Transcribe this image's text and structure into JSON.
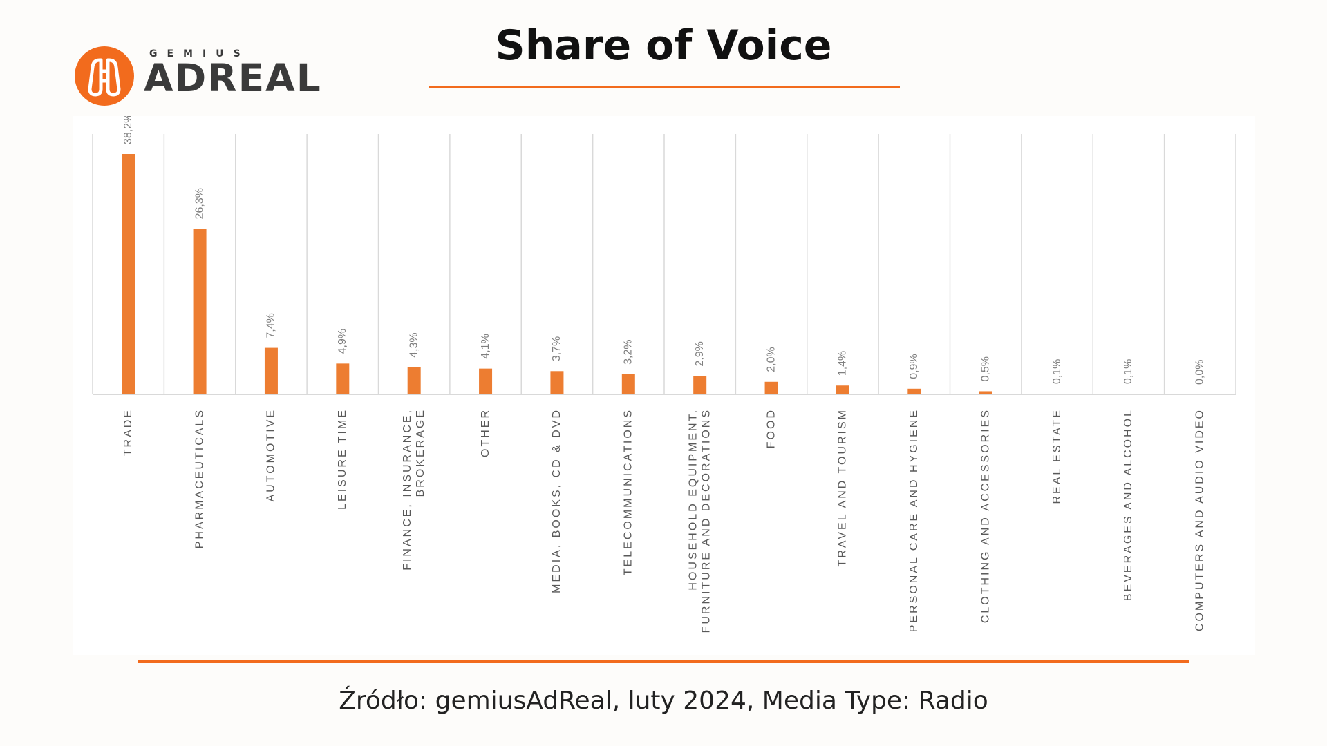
{
  "logo": {
    "small_text": "GEMIUS",
    "big_text": "ADREAL",
    "icon": "binoculars-icon",
    "brand_color": "#f26b1d"
  },
  "header": {
    "title": "Share of Voice"
  },
  "footer": {
    "source": "Źródło: gemiusAdReal, luty 2024, Media Type: Radio"
  },
  "colors": {
    "accent": "#f26b1d",
    "bar": "#ed7d31",
    "grid": "#d9d9d9",
    "axis_text": "#595959",
    "label_text": "#7f7f7f"
  },
  "chart_data": {
    "type": "bar",
    "orientation": "vertical",
    "title": "Share of Voice",
    "categories": [
      [
        "TRADE"
      ],
      [
        "PHARMACEUTICALS"
      ],
      [
        "AUTOMOTIVE"
      ],
      [
        "LEISURE TIME"
      ],
      [
        "FINANCE, INSURANCE,",
        "BROKERAGE"
      ],
      [
        "OTHER"
      ],
      [
        "MEDIA, BOOKS, CD & DVD"
      ],
      [
        "TELECOMMUNICATIONS"
      ],
      [
        "HOUSEHOLD EQUIPMENT,",
        "FURNITURE AND DECORATIONS"
      ],
      [
        "FOOD"
      ],
      [
        "TRAVEL AND TOURISM"
      ],
      [
        "PERSONAL CARE AND HYGIENE"
      ],
      [
        "CLOTHING AND ACCESSORIES"
      ],
      [
        "REAL ESTATE"
      ],
      [
        "BEVERAGES AND ALCOHOL"
      ],
      [
        "COMPUTERS AND AUDIO VIDEO"
      ]
    ],
    "values": [
      38.2,
      26.3,
      7.4,
      4.9,
      4.3,
      4.1,
      3.7,
      3.2,
      2.9,
      2.0,
      1.4,
      0.9,
      0.5,
      0.1,
      0.1,
      0.0
    ],
    "data_labels": [
      "38,2%",
      "26,3%",
      "7,4%",
      "4,9%",
      "4,3%",
      "4,1%",
      "3,7%",
      "3,2%",
      "2,9%",
      "2,0%",
      "1,4%",
      "0,9%",
      "0,5%",
      "0,1%",
      "0,1%",
      "0,0%"
    ],
    "unit": "%",
    "ylim": [
      0,
      40
    ],
    "grid": "vertical separators",
    "legend": "none"
  }
}
